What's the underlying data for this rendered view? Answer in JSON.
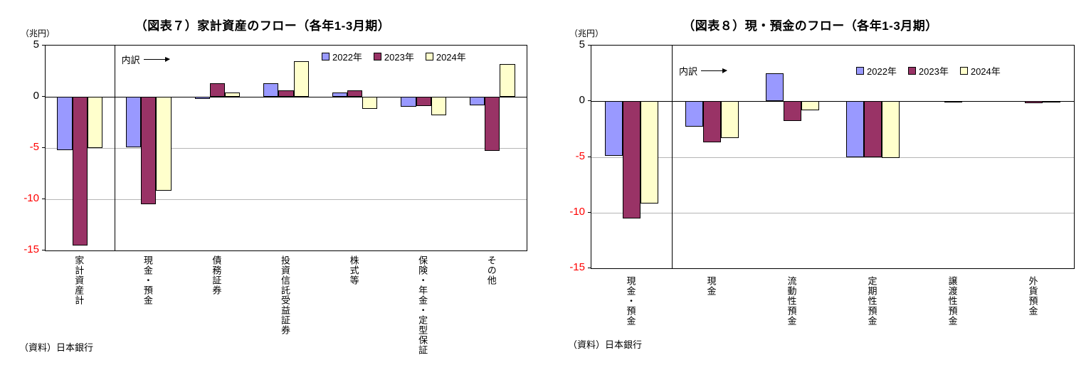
{
  "styles": {
    "negative_tick_color": "#ff0000",
    "series_colors": [
      "#9999ff",
      "#993366",
      "#ffffcc"
    ],
    "gridline_color": "#b5b5b5"
  },
  "chart_data": [
    {
      "type": "bar",
      "title": "（図表７）家計資産のフロー（各年1-3月期）",
      "unit": "（兆円）",
      "breakdown_label": "内訳",
      "source": "（資料）日本銀行",
      "categories": [
        "家計資産計",
        "現金・預金",
        "債務証券",
        "投資信託受益証券",
        "株式等",
        "保険・年金・定型保証",
        "その他"
      ],
      "series": [
        {
          "name": "2022年",
          "color": "#9999ff",
          "values": [
            -5.2,
            -4.9,
            -0.2,
            1.3,
            0.4,
            -1.0,
            -0.8
          ]
        },
        {
          "name": "2023年",
          "color": "#993366",
          "values": [
            -14.5,
            -10.5,
            1.3,
            0.6,
            0.6,
            -0.9,
            -5.3
          ]
        },
        {
          "name": "2024年",
          "color": "#ffffcc",
          "values": [
            -5.0,
            -9.2,
            0.4,
            3.5,
            -1.2,
            -1.8,
            3.2
          ]
        }
      ],
      "ylim": [
        -15,
        5
      ],
      "yticks": [
        5,
        0,
        -5,
        -10,
        -15
      ],
      "separator_after_index": 0,
      "grid": true,
      "legend_position": "top-right-inside"
    },
    {
      "type": "bar",
      "title": "（図表８）現・預金のフロー（各年1-3月期）",
      "unit": "（兆円）",
      "breakdown_label": "内訳",
      "source": "（資料）日本銀行",
      "categories": [
        "現金・預金",
        "現金",
        "流動性預金",
        "定期性預金",
        "譲渡性預金",
        "外貨預金"
      ],
      "series": [
        {
          "name": "2022年",
          "color": "#9999ff",
          "values": [
            -4.9,
            -2.3,
            2.5,
            -5.0,
            0,
            0
          ]
        },
        {
          "name": "2023年",
          "color": "#993366",
          "values": [
            -10.5,
            -3.7,
            -1.8,
            -5.0,
            -0.1,
            -0.2
          ]
        },
        {
          "name": "2024年",
          "color": "#ffffcc",
          "values": [
            -9.2,
            -3.3,
            -0.8,
            -5.1,
            0,
            -0.1
          ]
        }
      ],
      "ylim": [
        -15,
        5
      ],
      "yticks": [
        5,
        0,
        -5,
        -10,
        -15
      ],
      "separator_after_index": 0,
      "grid": true,
      "legend_position": "top-right-inside"
    }
  ]
}
